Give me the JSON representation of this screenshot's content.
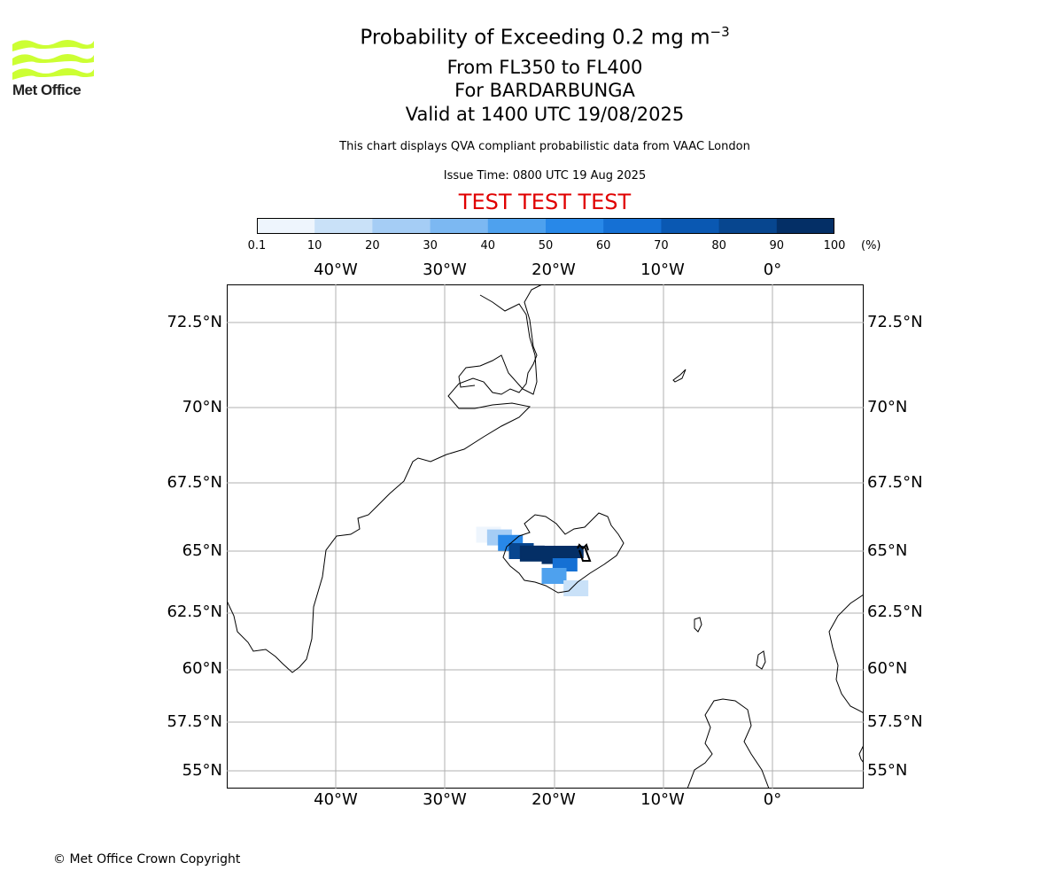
{
  "logo": {
    "text": "Met Office",
    "color": "#ccff33"
  },
  "title": {
    "main": "Probability of Exceeding 0.2 mg m",
    "main_sup": "−3",
    "levels": "From FL350 to FL400",
    "volcano": "For BARDARBUNGA",
    "valid": "Valid at 1400 UTC 19/08/2025"
  },
  "subtitle": "This chart displays QVA compliant probabilistic data from VAAC London",
  "issue_time": "Issue Time: 0800 UTC 19 Aug 2025",
  "test_banner": "TEST TEST TEST",
  "test_color": "#e00000",
  "colorbar": {
    "ticks": [
      "0.1",
      "10",
      "20",
      "30",
      "40",
      "50",
      "60",
      "70",
      "80",
      "90",
      "100"
    ],
    "unit": "(%)",
    "colors": [
      "#eef5fd",
      "#c9e1f8",
      "#a5cdf5",
      "#7cb8f2",
      "#4ea1ee",
      "#2888e8",
      "#1570d4",
      "#0a58b2",
      "#07468f",
      "#042f66"
    ]
  },
  "map": {
    "lon_labels": [
      "40°W",
      "30°W",
      "20°W",
      "10°W",
      "0°"
    ],
    "lat_labels": [
      "72.5°N",
      "70°N",
      "67.5°N",
      "65°N",
      "62.5°N",
      "60°N",
      "57.5°N",
      "55°N"
    ],
    "volcano_marker": "volcano-icon",
    "grid_color": "#b0b0b0",
    "probability_plume": [
      {
        "lon": -26,
        "lat": 65.6,
        "prob": 0.1
      },
      {
        "lon": -25,
        "lat": 65.5,
        "prob": 20
      },
      {
        "lon": -24,
        "lat": 65.3,
        "prob": 50
      },
      {
        "lon": -23,
        "lat": 65.0,
        "prob": 80
      },
      {
        "lon": -22,
        "lat": 64.9,
        "prob": 100
      },
      {
        "lon": -20,
        "lat": 64.8,
        "prob": 90
      },
      {
        "lon": -19,
        "lat": 64.5,
        "prob": 60
      },
      {
        "lon": -20,
        "lat": 64.0,
        "prob": 40
      },
      {
        "lon": -18,
        "lat": 63.5,
        "prob": 10
      }
    ]
  },
  "copyright": "© Met Office Crown Copyright"
}
